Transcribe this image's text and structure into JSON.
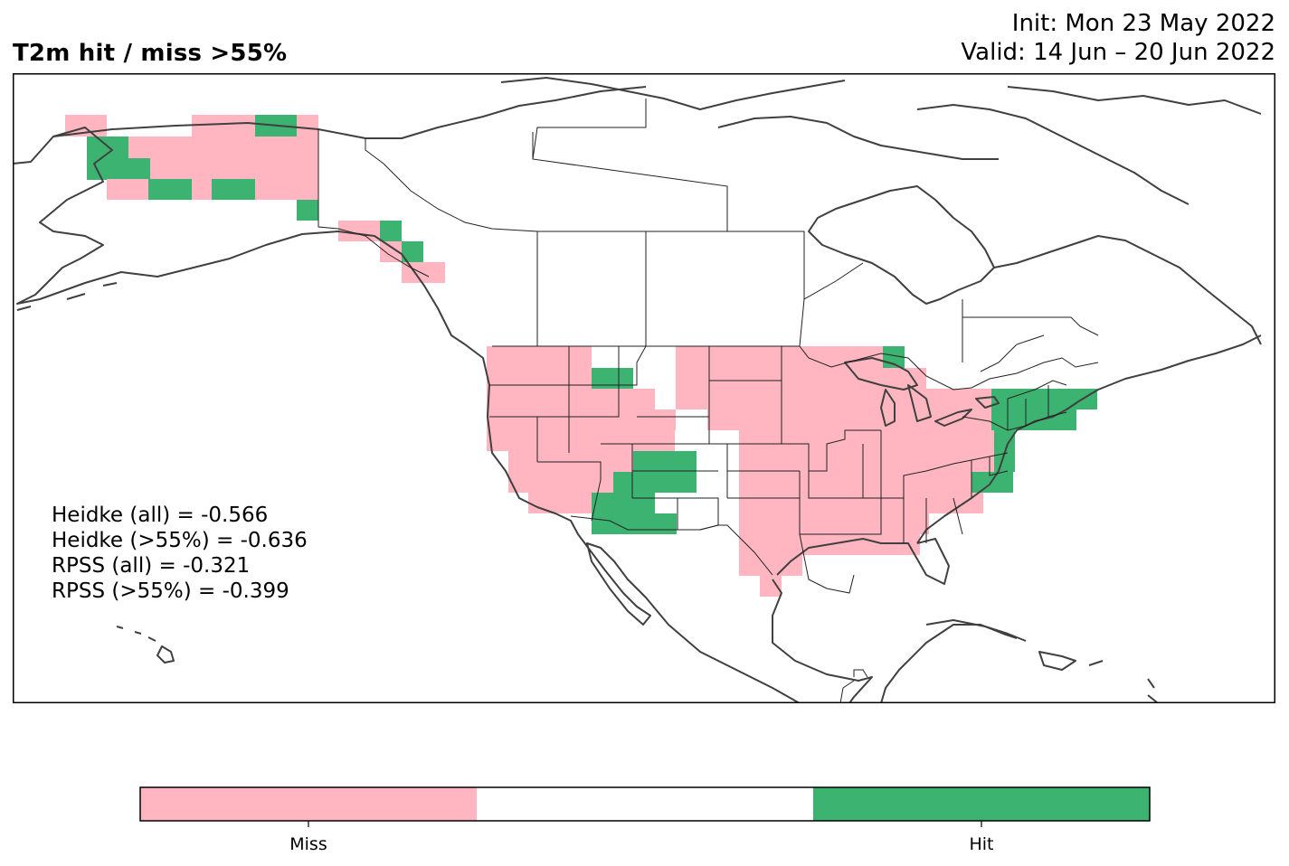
{
  "header": {
    "title": "T2m hit / miss  >55%",
    "init_line": "Init: Mon 23 May 2022",
    "valid_line": "Valid: 14 Jun – 20 Jun 2022"
  },
  "stats": [
    "Heidke (all) = -0.566",
    "Heidke (>55%) = -0.636",
    "RPSS (all) = -0.321",
    "RPSS (>55%) = -0.399"
  ],
  "colors": {
    "miss": "#ffb6c1",
    "hit": "#3cb371",
    "coast": "#404040",
    "border": "#222222"
  },
  "colorbar": {
    "segments": [
      {
        "category": "miss",
        "label": "Miss"
      },
      {
        "category": "neutral",
        "label": ""
      },
      {
        "category": "hit",
        "label": "Hit"
      }
    ]
  }
}
